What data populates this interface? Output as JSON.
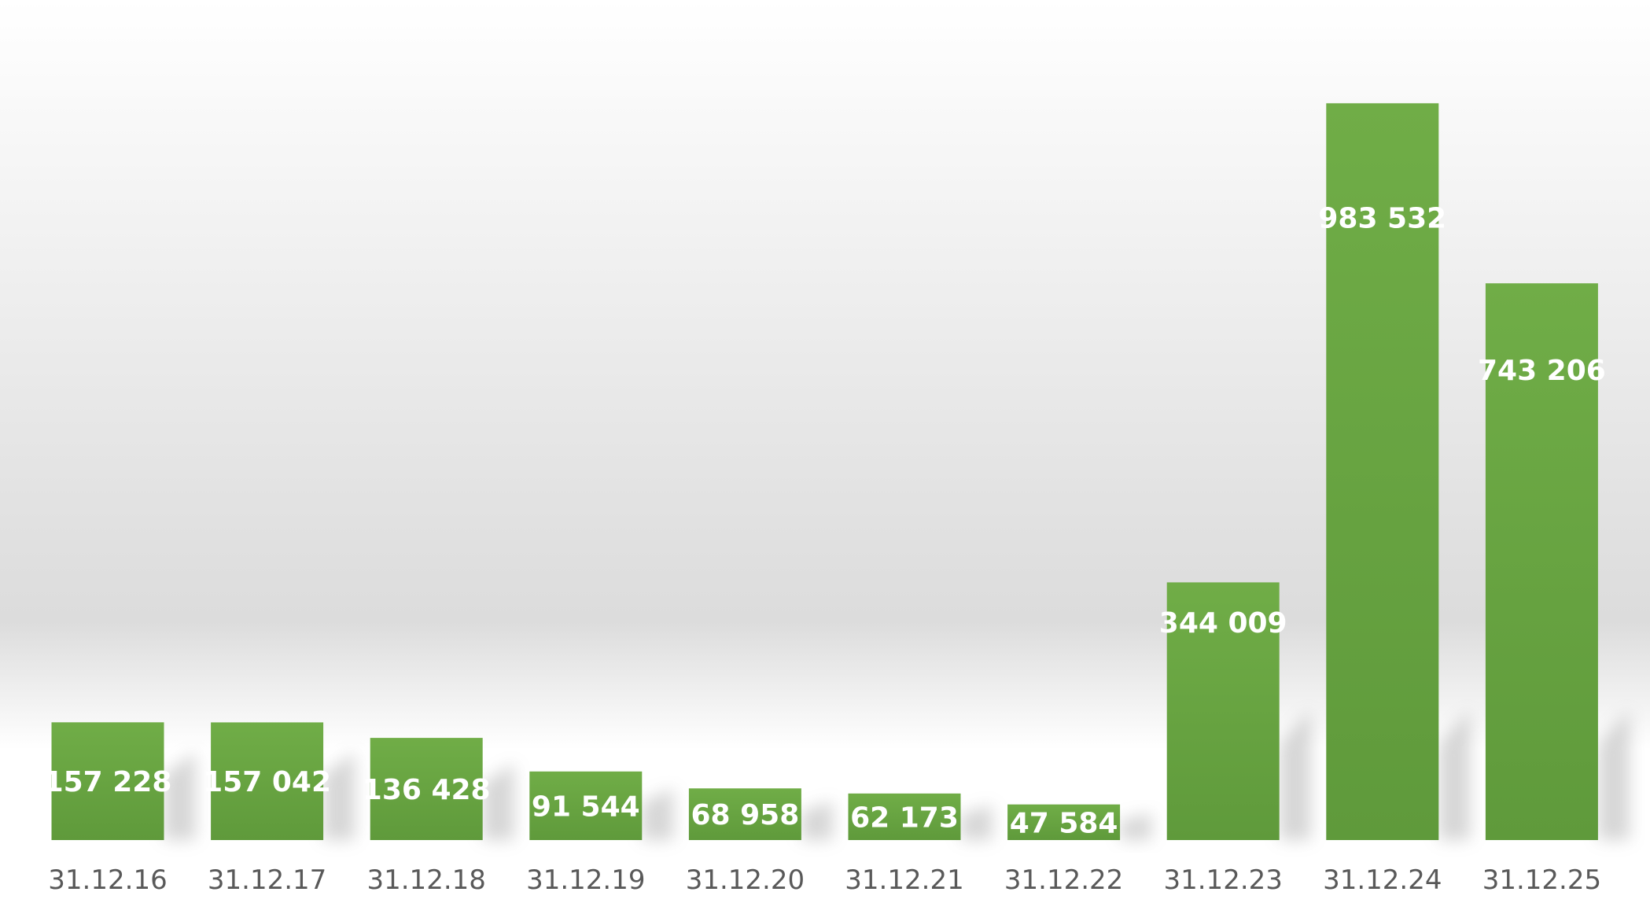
{
  "chart_data": {
    "type": "bar",
    "title": "",
    "xlabel": "",
    "ylabel": "",
    "categories": [
      "31.12.16",
      "31.12.17",
      "31.12.18",
      "31.12.19",
      "31.12.20",
      "31.12.21",
      "31.12.22",
      "31.12.23",
      "31.12.24",
      "31.12.25"
    ],
    "values": [
      157228,
      157042,
      136428,
      91544,
      68958,
      62173,
      47584,
      344009,
      983532,
      743206
    ],
    "data_labels": [
      "157 228",
      "157 042",
      "136 428",
      "91 544",
      "68 958",
      "62 173",
      "47 584",
      "344 009",
      "983 532",
      "743 206"
    ],
    "ylim": [
      0,
      1050000
    ],
    "grid": false,
    "legend": "none",
    "colors": {
      "bar": "#70ad47",
      "bar_dark": "#5f9a3b",
      "data_label": "#ffffff",
      "tick_label": "#595959",
      "background_top": "#ffffff",
      "background_band": "#d9d9d9"
    }
  }
}
